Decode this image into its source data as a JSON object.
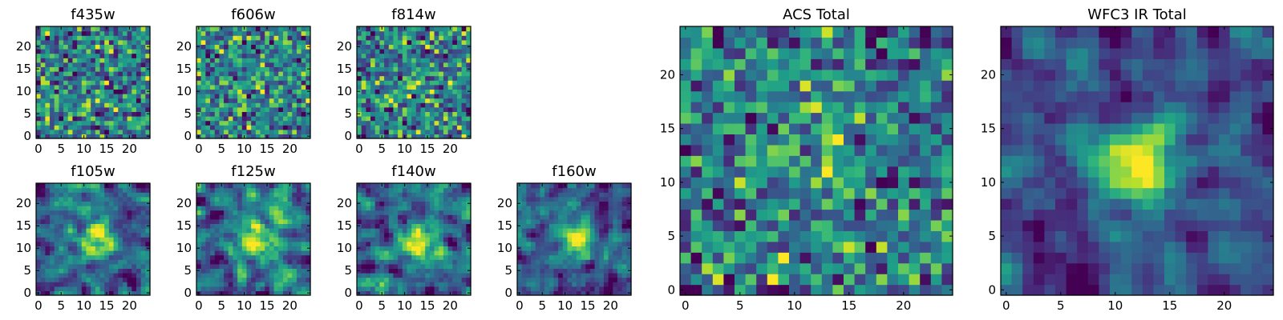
{
  "figure": {
    "description_free": true
  },
  "chart_data": [
    {
      "type": "heatmap",
      "title": "f435w",
      "xlim": [
        -0.5,
        24.5
      ],
      "ylim": [
        -0.5,
        24.5
      ],
      "xticks": [
        0,
        5,
        10,
        15,
        20
      ],
      "yticks": [
        0,
        5,
        10,
        15,
        20
      ],
      "grid": false,
      "colormap": "viridis",
      "signal": 0.05,
      "noise": 0.42,
      "smooth": 0,
      "seed": 11
    },
    {
      "type": "heatmap",
      "title": "f606w",
      "xlim": [
        -0.5,
        24.5
      ],
      "ylim": [
        -0.5,
        24.5
      ],
      "xticks": [
        0,
        5,
        10,
        15,
        20
      ],
      "yticks": [
        0,
        5,
        10,
        15,
        20
      ],
      "grid": false,
      "colormap": "viridis",
      "signal": 0.08,
      "noise": 0.42,
      "smooth": 0,
      "seed": 23
    },
    {
      "type": "heatmap",
      "title": "f814w",
      "xlim": [
        -0.5,
        24.5
      ],
      "ylim": [
        -0.5,
        24.5
      ],
      "xticks": [
        0,
        5,
        10,
        15,
        20
      ],
      "yticks": [
        0,
        5,
        10,
        15,
        20
      ],
      "grid": false,
      "colormap": "viridis",
      "signal": 0.22,
      "noise": 0.4,
      "smooth": 0,
      "seed": 37
    },
    {
      "type": "heatmap",
      "title": "f105w",
      "xlim": [
        -0.5,
        24.5
      ],
      "ylim": [
        -0.5,
        24.5
      ],
      "xticks": [
        0,
        5,
        10,
        15,
        20
      ],
      "yticks": [
        0,
        5,
        10,
        15,
        20
      ],
      "grid": false,
      "colormap": "viridis",
      "signal": 0.6,
      "noise": 0.32,
      "smooth": 1,
      "seed": 41
    },
    {
      "type": "heatmap",
      "title": "f125w",
      "xlim": [
        -0.5,
        24.5
      ],
      "ylim": [
        -0.5,
        24.5
      ],
      "xticks": [
        0,
        5,
        10,
        15,
        20
      ],
      "yticks": [
        0,
        5,
        10,
        15,
        20
      ],
      "grid": false,
      "colormap": "viridis",
      "signal": 0.6,
      "noise": 0.32,
      "smooth": 1,
      "seed": 53
    },
    {
      "type": "heatmap",
      "title": "f140w",
      "xlim": [
        -0.5,
        24.5
      ],
      "ylim": [
        -0.5,
        24.5
      ],
      "xticks": [
        0,
        5,
        10,
        15,
        20
      ],
      "yticks": [
        0,
        5,
        10,
        15,
        20
      ],
      "grid": false,
      "colormap": "viridis",
      "signal": 0.6,
      "noise": 0.3,
      "smooth": 1,
      "seed": 67
    },
    {
      "type": "heatmap",
      "title": "f160w",
      "xlim": [
        -0.5,
        24.5
      ],
      "ylim": [
        -0.5,
        24.5
      ],
      "xticks": [
        0,
        5,
        10,
        15,
        20
      ],
      "yticks": [
        0,
        5,
        10,
        15,
        20
      ],
      "grid": false,
      "colormap": "viridis",
      "signal": 0.6,
      "noise": 0.3,
      "smooth": 1,
      "seed": 79
    },
    {
      "type": "heatmap",
      "title": "ACS Total",
      "xlim": [
        -0.5,
        24.5
      ],
      "ylim": [
        -0.5,
        24.5
      ],
      "xticks": [
        0,
        5,
        10,
        15,
        20
      ],
      "yticks": [
        0,
        5,
        10,
        15,
        20
      ],
      "grid": false,
      "colormap": "viridis",
      "signal": 0.3,
      "noise": 0.28,
      "smooth": 0,
      "seed": 97
    },
    {
      "type": "heatmap",
      "title": "WFC3 IR Total",
      "xlim": [
        -0.5,
        24.5
      ],
      "ylim": [
        -0.5,
        24.5
      ],
      "xticks": [
        0,
        5,
        10,
        15,
        20
      ],
      "yticks": [
        0,
        5,
        10,
        15,
        20
      ],
      "grid": false,
      "colormap": "viridis",
      "signal": 0.75,
      "noise": 0.22,
      "smooth": 1,
      "seed": 113
    }
  ]
}
